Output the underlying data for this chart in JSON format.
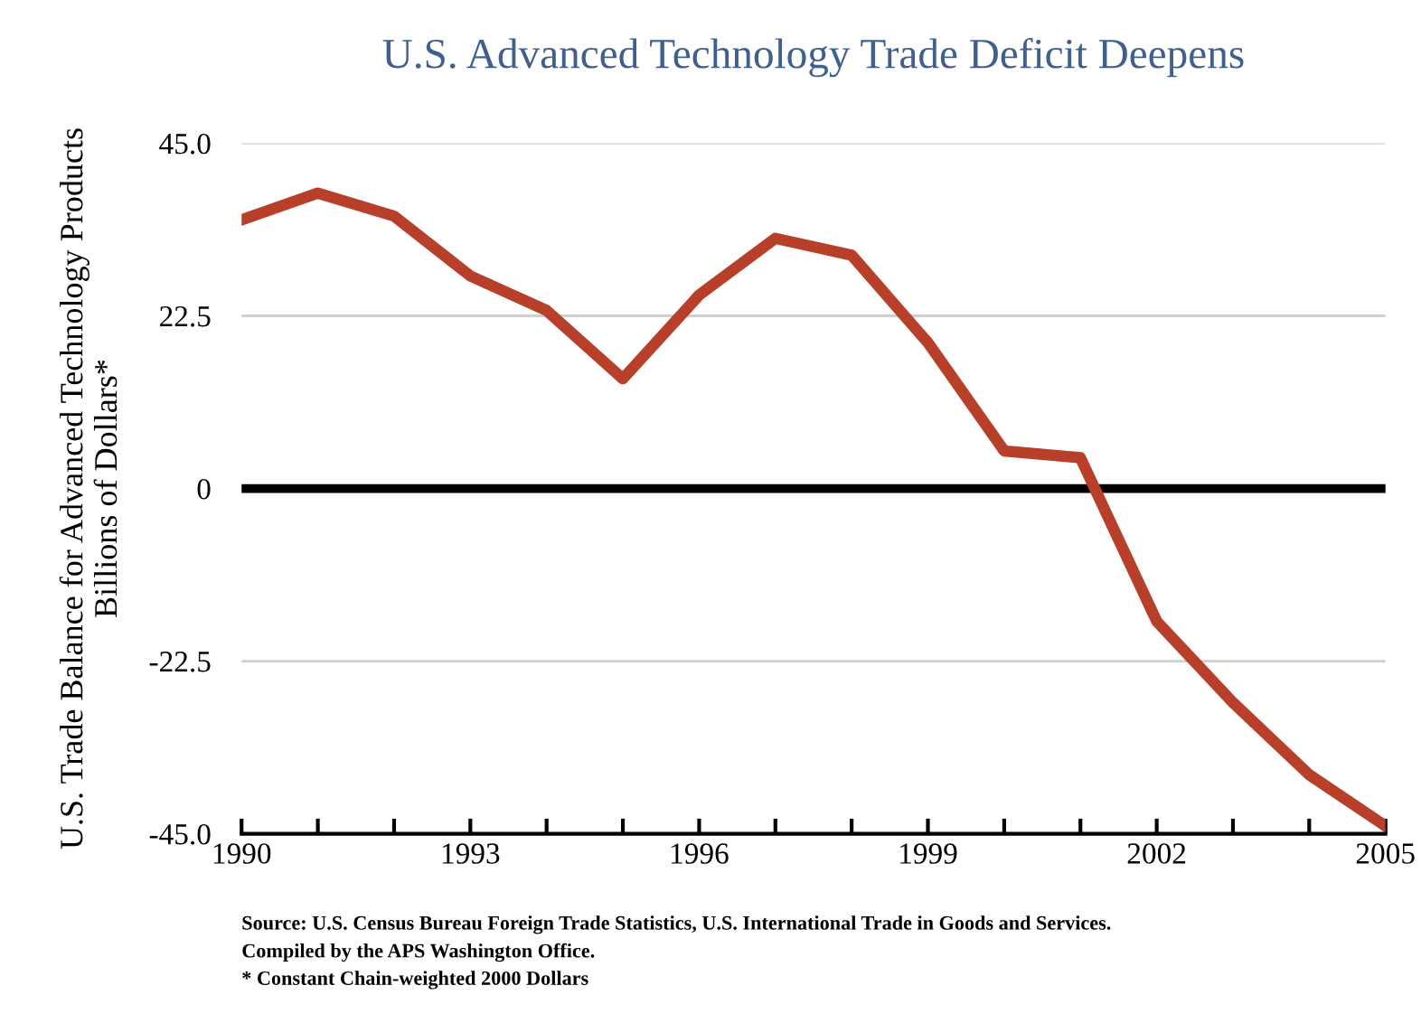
{
  "chart_data": {
    "type": "line",
    "title": "U.S. Advanced Technology Trade Deficit Deepens",
    "ylabel": "U.S. Trade Balance for Advanced Technology Products\nBillions of Dollars*",
    "x": [
      1990,
      1991,
      1992,
      1993,
      1994,
      1995,
      1996,
      1997,
      1998,
      1999,
      2000,
      2001,
      2002,
      2003,
      2004,
      2005
    ],
    "series": [
      {
        "color": "#b8402a",
        "values": [
          35.0,
          38.5,
          35.5,
          27.7,
          23.2,
          14.3,
          25.2,
          32.6,
          30.4,
          19.0,
          4.9,
          4.0,
          -17.3,
          -27.9,
          -37.3,
          -44.0
        ]
      }
    ],
    "xlim": [
      1990,
      2005
    ],
    "xticks": [
      1990,
      {
        "value": 1991,
        "label": null
      },
      {
        "value": 1992,
        "label": null
      },
      1993,
      {
        "value": 1994,
        "label": null
      },
      {
        "value": 1995,
        "label": null
      },
      1996,
      {
        "value": 1997,
        "label": null
      },
      {
        "value": 1998,
        "label": null
      },
      1999,
      {
        "value": 2000,
        "label": null
      },
      {
        "value": 2001,
        "label": null
      },
      2002,
      {
        "value": 2003,
        "label": null
      },
      {
        "value": 2004,
        "label": null
      },
      2005
    ],
    "ylim": [
      -45,
      45
    ],
    "yticks": [
      {
        "value": 45,
        "label": "45.0"
      },
      22.5,
      0,
      -22.5,
      {
        "value": -45,
        "label": "-45.0"
      }
    ],
    "grid": "y",
    "ref_lines": [
      {
        "axis": "y",
        "value": 0,
        "color": "#000000"
      }
    ],
    "legend": false,
    "marker": "none",
    "line_style": "solid",
    "annotations": [
      "Source: U.S. Census Bureau Foreign Trade Statistics, U.S. International Trade in Goods and Services.",
      "Compiled by the APS Washington Office.",
      "* Constant Chain-weighted 2000 Dollars"
    ]
  }
}
